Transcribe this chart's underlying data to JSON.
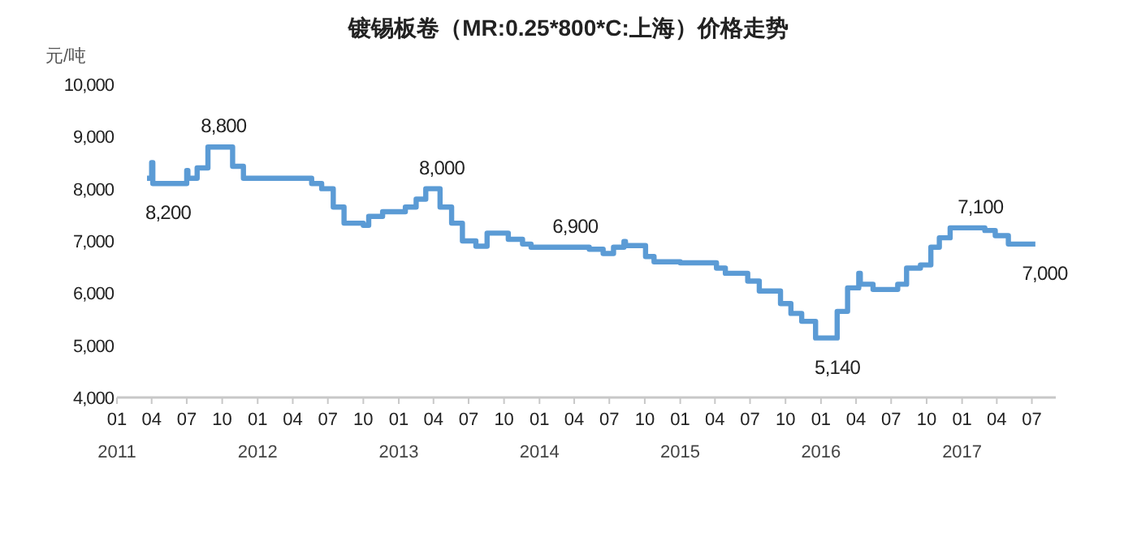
{
  "chart_data": {
    "type": "step",
    "title": "镀锡板卷（MR:0.25*800*C:上海）价格走势",
    "ylabel": "元/吨",
    "color": "#5b9bd5",
    "x": [
      "2011-03-20",
      "2011-04-01",
      "2011-04-04",
      "2011-07-01",
      "2011-07-04",
      "2011-07-28",
      "2011-08-25",
      "2011-10-28",
      "2011-11-25",
      "2012-05-20",
      "2012-06-15",
      "2012-07-15",
      "2012-08-12",
      "2012-10-01",
      "2012-10-15",
      "2012-11-20",
      "2013-01-18",
      "2013-02-15",
      "2013-03-12",
      "2013-04-18",
      "2013-05-18",
      "2013-06-15",
      "2013-07-20",
      "2013-08-18",
      "2013-10-12",
      "2013-11-18",
      "2013-12-10",
      "2014-05-10",
      "2014-06-15",
      "2014-07-12",
      "2014-08-08",
      "2014-08-12",
      "2014-10-03",
      "2014-10-25",
      "2015-01-01",
      "2015-04-05",
      "2015-04-28",
      "2015-06-25",
      "2015-07-25",
      "2015-09-18",
      "2015-10-15",
      "2015-11-12",
      "2015-12-18",
      "2016-02-12",
      "2016-03-10",
      "2016-04-08",
      "2016-04-12",
      "2016-05-15",
      "2016-07-18",
      "2016-08-10",
      "2016-09-15",
      "2016-10-12",
      "2016-11-03",
      "2016-12-01",
      "2017-03-01",
      "2017-03-28",
      "2017-05-01",
      "2017-07-10"
    ],
    "values": [
      8200,
      8500,
      8100,
      8350,
      8200,
      8400,
      8800,
      8430,
      8200,
      8100,
      8000,
      7650,
      7340,
      7300,
      7470,
      7560,
      7650,
      7800,
      8000,
      7650,
      7340,
      7000,
      6900,
      7150,
      7030,
      6940,
      6880,
      6840,
      6760,
      6880,
      6990,
      6910,
      6700,
      6600,
      6580,
      6480,
      6380,
      6230,
      6040,
      5800,
      5610,
      5460,
      5140,
      5650,
      6100,
      6380,
      6170,
      6070,
      6170,
      6480,
      6540,
      6880,
      7060,
      7250,
      7200,
      7100,
      6940,
      6940
    ],
    "xlim": [
      "2011-01-01",
      "2017-09-01"
    ],
    "ylim": [
      4000,
      10000
    ],
    "yticks": [
      {
        "value": 4000,
        "label": "4,000"
      },
      {
        "value": 5000,
        "label": "5,000"
      },
      {
        "value": 6000,
        "label": "6,000"
      },
      {
        "value": 7000,
        "label": "7,000"
      },
      {
        "value": 8000,
        "label": "8,000"
      },
      {
        "value": 9000,
        "label": "9,000"
      },
      {
        "value": 10000,
        "label": "10,000"
      }
    ],
    "xticks": [
      {
        "value": "2011-01",
        "label": "01\n2011"
      },
      {
        "value": "2011-04",
        "label": "04"
      },
      {
        "value": "2011-07",
        "label": "07"
      },
      {
        "value": "2011-10",
        "label": "10"
      },
      {
        "value": "2012-01",
        "label": "01\n2012"
      },
      {
        "value": "2012-04",
        "label": "04"
      },
      {
        "value": "2012-07",
        "label": "07"
      },
      {
        "value": "2012-10",
        "label": "10"
      },
      {
        "value": "2013-01",
        "label": "01\n2013"
      },
      {
        "value": "2013-04",
        "label": "04"
      },
      {
        "value": "2013-07",
        "label": "07"
      },
      {
        "value": "2013-10",
        "label": "10"
      },
      {
        "value": "2014-01",
        "label": "01\n2014"
      },
      {
        "value": "2014-04",
        "label": "04"
      },
      {
        "value": "2014-07",
        "label": "07"
      },
      {
        "value": "2014-10",
        "label": "10"
      },
      {
        "value": "2015-01",
        "label": "01\n2015"
      },
      {
        "value": "2015-04",
        "label": "04"
      },
      {
        "value": "2015-07",
        "label": "07"
      },
      {
        "value": "2015-10",
        "label": "10"
      },
      {
        "value": "2016-01",
        "label": "01\n2016"
      },
      {
        "value": "2016-04",
        "label": "04"
      },
      {
        "value": "2016-07",
        "label": "07"
      },
      {
        "value": "2016-10",
        "label": "10"
      },
      {
        "value": "2017-01",
        "label": "01\n2017"
      },
      {
        "value": "2017-04",
        "label": "04"
      },
      {
        "value": "2017-07",
        "label": "07"
      }
    ],
    "annotations": [
      {
        "text": "8,200",
        "x": "2011-04-10",
        "y": 8100
      },
      {
        "text": "8,800",
        "x": "2011-09-01",
        "y": 8800
      },
      {
        "text": "8,000",
        "x": "2013-03-20",
        "y": 8000
      },
      {
        "text": "6,900",
        "x": "2014-03-01",
        "y": 6880
      },
      {
        "text": "5,140",
        "x": "2016-01-10",
        "y": 5140
      },
      {
        "text": "7,100",
        "x": "2017-01-15",
        "y": 7250
      },
      {
        "text": "7,000",
        "x": "2017-07-01",
        "y": 6940
      }
    ]
  }
}
